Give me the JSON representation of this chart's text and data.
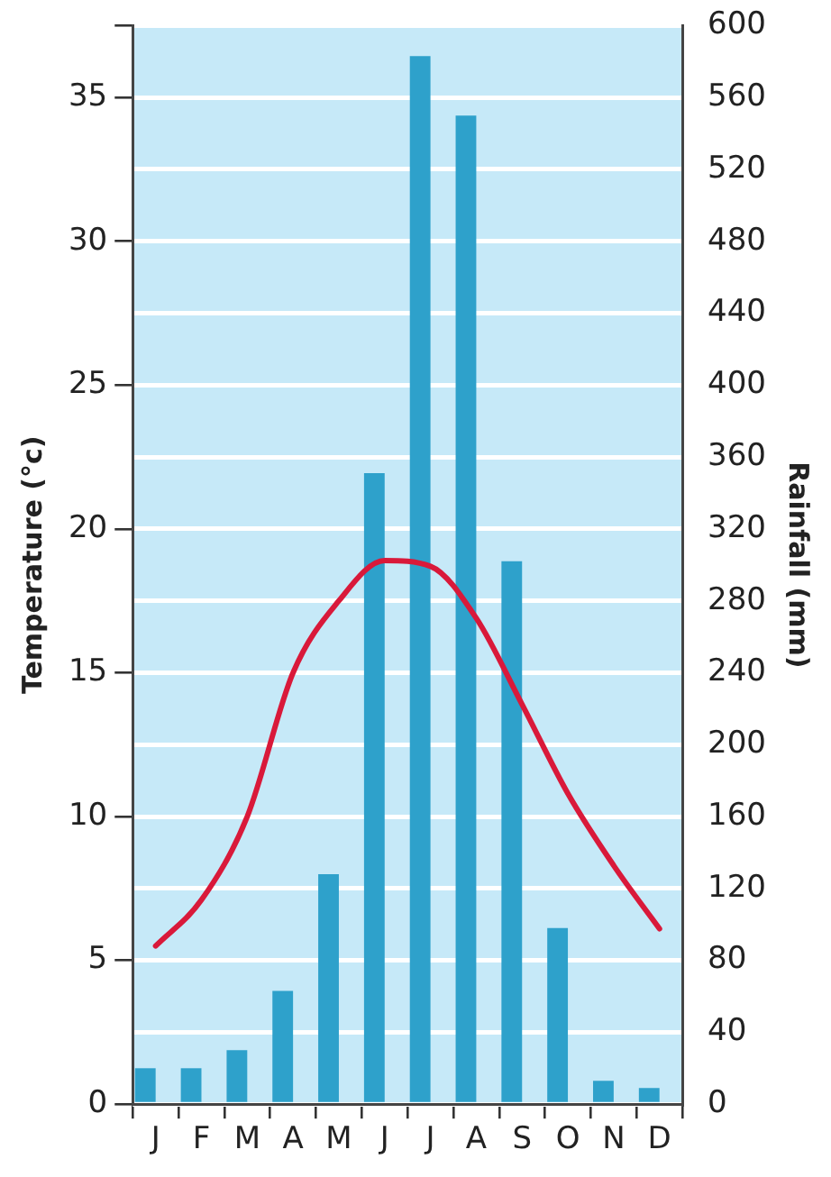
{
  "chart_data": {
    "type": "bar",
    "ylabel": "Temperature (°c)",
    "y2label": "Rainfall (mm)",
    "categories": [
      "J",
      "F",
      "M",
      "A",
      "M",
      "J",
      "J",
      "A",
      "S",
      "O",
      "N",
      "D"
    ],
    "series": [
      {
        "axis": "y2",
        "color": "#2ea1cb",
        "values": [
          20,
          20,
          30,
          63,
          128,
          351,
          583,
          550,
          302,
          98,
          13,
          9
        ]
      },
      {
        "type": "line",
        "axis": "y",
        "color": "#d9193a",
        "values": [
          5.5,
          7.1,
          10.0,
          15.0,
          17.5,
          18.9,
          18.7,
          16.9,
          13.9,
          10.8,
          8.3,
          6.1
        ]
      }
    ],
    "ylim": [
      0,
      37.5
    ],
    "yticks": [
      0,
      5,
      10,
      15,
      20,
      25,
      30,
      35,
      {
        "value": 37.5,
        "label": null
      }
    ],
    "y2lim": [
      0,
      600
    ],
    "y2ticks": [
      0,
      40,
      80,
      120,
      160,
      200,
      240,
      280,
      320,
      360,
      400,
      440,
      480,
      520,
      560,
      600
    ],
    "grid": "y2",
    "marker": "none",
    "line_style": "solid"
  }
}
